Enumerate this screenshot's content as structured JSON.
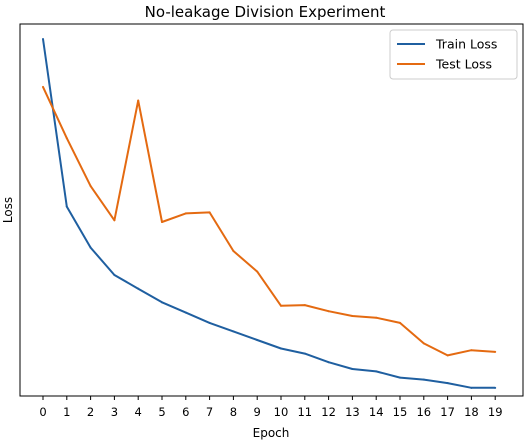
{
  "chart_data": {
    "type": "line",
    "title": "No-leakage Division Experiment",
    "xlabel": "Epoch",
    "ylabel": "Loss",
    "x": [
      0,
      1,
      2,
      3,
      4,
      5,
      6,
      7,
      8,
      9,
      10,
      11,
      12,
      13,
      14,
      15,
      16,
      17,
      18,
      19
    ],
    "ylim": [
      0,
      1
    ],
    "y_ticks_shown": false,
    "legend_position": "upper right",
    "series": [
      {
        "name": "Train Loss",
        "color": "#1f5fa0",
        "values": [
          1.0,
          0.51,
          0.39,
          0.31,
          0.27,
          0.23,
          0.2,
          0.17,
          0.145,
          0.12,
          0.095,
          0.08,
          0.055,
          0.035,
          0.028,
          0.01,
          0.004,
          -0.006,
          -0.02,
          -0.02
        ]
      },
      {
        "name": "Test Loss",
        "color": "#e46a11",
        "values": [
          0.86,
          0.71,
          0.57,
          0.47,
          0.82,
          0.465,
          0.49,
          0.493,
          0.38,
          0.32,
          0.22,
          0.222,
          0.204,
          0.19,
          0.185,
          0.17,
          0.11,
          0.075,
          0.09,
          0.085
        ]
      }
    ]
  }
}
